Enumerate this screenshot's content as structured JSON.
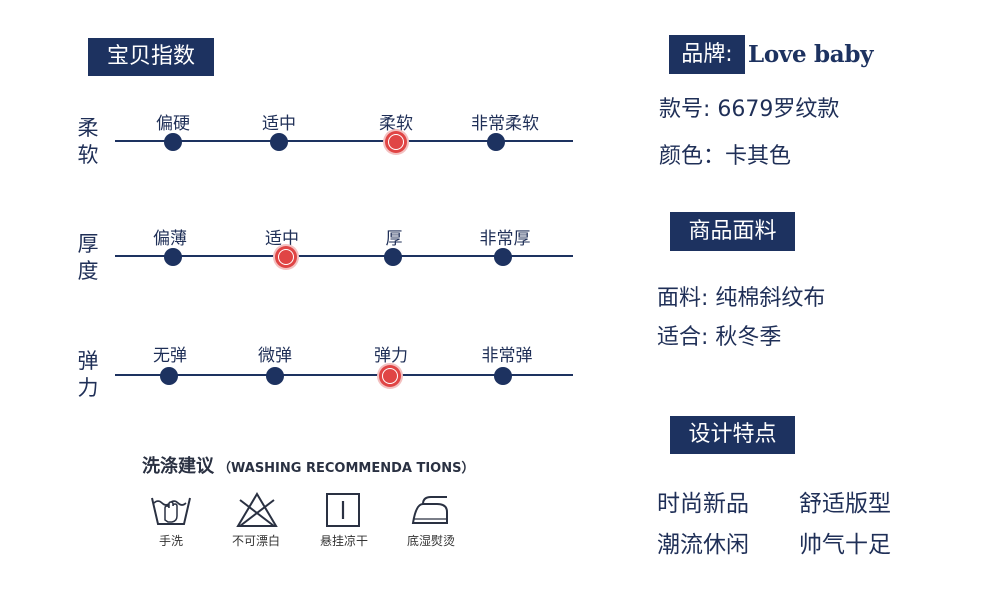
{
  "index": {
    "title": "宝贝指数",
    "rows": [
      {
        "label": "柔软",
        "levels": [
          "偏硬",
          "适中",
          "柔软",
          "非常柔软"
        ],
        "selected": 2
      },
      {
        "label": "厚度",
        "levels": [
          "偏薄",
          "适中",
          "厚",
          "非常厚"
        ],
        "selected": 1
      },
      {
        "label": "弹力",
        "levels": [
          "无弹",
          "微弹",
          "弹力",
          "非常弹"
        ],
        "selected": 2
      }
    ]
  },
  "washing": {
    "title": "洗涤建议",
    "subtitle": "（WASHING RECOMMENDA TIONS）",
    "items": [
      {
        "icon": "hand-wash-icon",
        "label": "手洗"
      },
      {
        "icon": "no-bleach-icon",
        "label": "不可漂白"
      },
      {
        "icon": "hang-dry-icon",
        "label": "悬挂凉干"
      },
      {
        "icon": "iron-icon",
        "label": "底湿熨烫"
      }
    ]
  },
  "brand": {
    "label": "品牌:",
    "name": "Love baby",
    "model": "款号: 6679罗纹款",
    "color": "颜色：卡其色"
  },
  "fabric": {
    "title": "商品面料",
    "material": "面料: 纯棉斜纹布",
    "season": "适合: 秋冬季"
  },
  "design": {
    "title": "设计特点",
    "features": [
      "时尚新品",
      "舒适版型",
      "潮流休闲",
      "帅气十足"
    ]
  },
  "colors": {
    "navy": "#1d3260",
    "highlight": "#e04545"
  }
}
